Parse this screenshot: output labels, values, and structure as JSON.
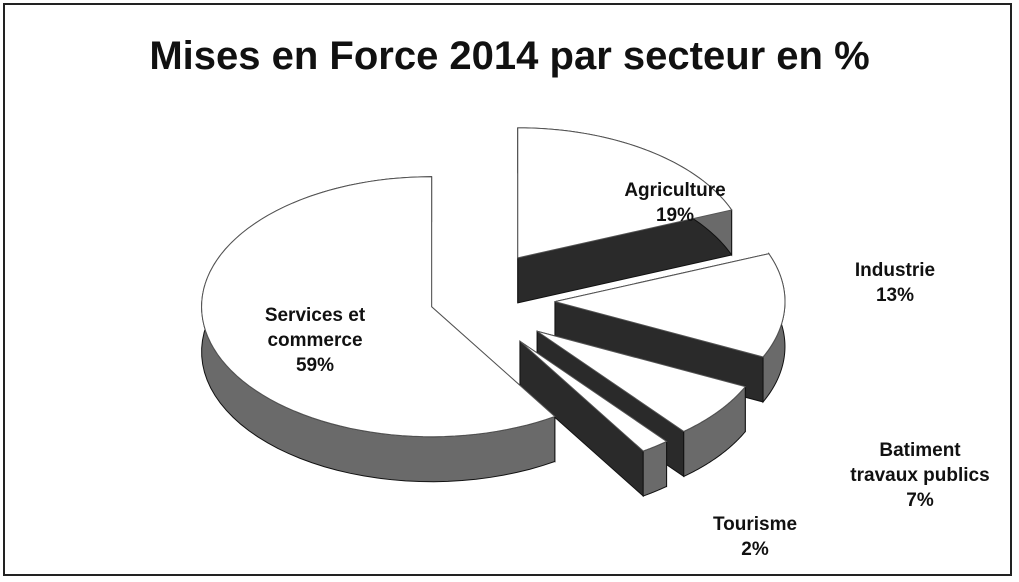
{
  "chart_data": {
    "type": "pie",
    "title": "Mises en Force 2014 par secteur en %",
    "categories": [
      "Agriculture",
      "Industrie",
      "Batiment travaux publics",
      "Tourisme",
      "Services et commerce"
    ],
    "values": [
      19,
      13,
      7,
      2,
      59
    ],
    "value_labels": [
      "19%",
      "13%",
      "7%",
      "2%",
      "59%"
    ],
    "colors": [
      "#ffffff",
      "#ffffff",
      "#ffffff",
      "#ffffff",
      "#ffffff"
    ],
    "side_color": "#2a2a2a"
  }
}
